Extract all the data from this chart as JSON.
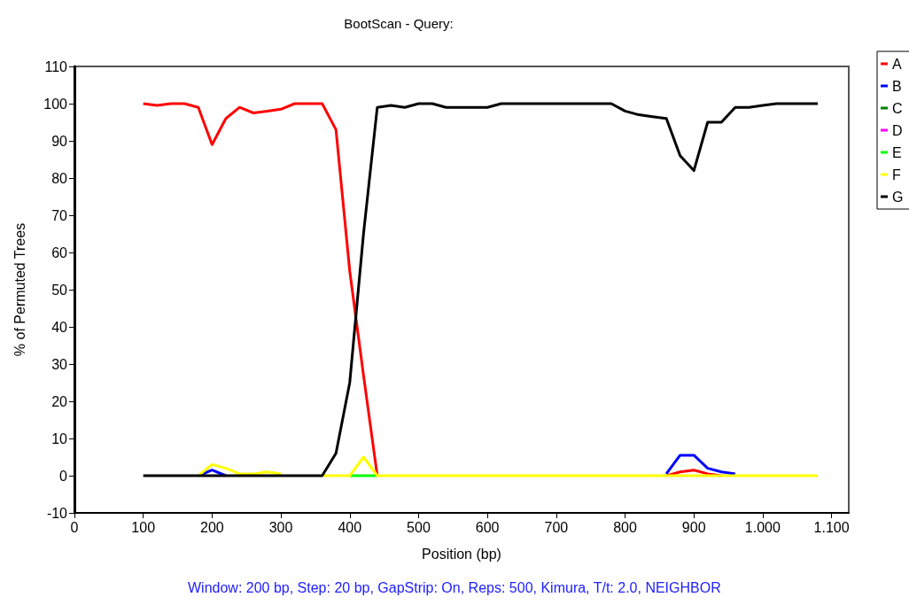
{
  "chart_data": {
    "type": "line",
    "title": "BootScan - Query:",
    "xlabel": "Position (bp)",
    "ylabel": "% of Permuted Trees",
    "annotations": [
      "Window: 200 bp, Step: 20 bp, GapStrip: On, Reps: 500, Kimura, T/t: 2.0, NEIGHBOR"
    ],
    "x": [
      100,
      120,
      140,
      160,
      180,
      200,
      220,
      240,
      260,
      280,
      300,
      320,
      340,
      360,
      380,
      400,
      420,
      440,
      460,
      480,
      500,
      520,
      540,
      560,
      580,
      600,
      620,
      640,
      660,
      680,
      700,
      720,
      740,
      760,
      780,
      800,
      820,
      840,
      860,
      880,
      900,
      920,
      940,
      960,
      980,
      1000,
      1020,
      1040,
      1060,
      1080
    ],
    "series": [
      {
        "name": "A",
        "color": "#ff0000",
        "values": [
          100,
          99.5,
          100,
          100,
          99,
          89,
          96,
          99,
          97.5,
          98,
          98.5,
          100,
          100,
          100,
          93,
          55,
          27,
          0,
          null,
          null,
          null,
          null,
          null,
          null,
          null,
          null,
          null,
          null,
          null,
          null,
          null,
          null,
          null,
          null,
          null,
          null,
          null,
          null,
          0,
          1,
          1.5,
          0.5,
          0,
          null,
          null,
          null,
          null,
          null,
          null,
          null
        ]
      },
      {
        "name": "B",
        "color": "#0000ff",
        "values": [
          null,
          null,
          null,
          null,
          0,
          1.5,
          0,
          null,
          null,
          null,
          null,
          null,
          null,
          null,
          null,
          null,
          null,
          null,
          null,
          null,
          null,
          null,
          null,
          null,
          null,
          null,
          null,
          null,
          null,
          null,
          null,
          null,
          null,
          null,
          null,
          null,
          null,
          null,
          0.5,
          5.5,
          5.5,
          2,
          1,
          0.5,
          null,
          null,
          null,
          null,
          null,
          null
        ]
      },
      {
        "name": "C",
        "color": "#008000",
        "values": [
          null,
          null,
          null,
          null,
          null,
          null,
          null,
          null,
          null,
          null,
          null,
          null,
          null,
          null,
          null,
          null,
          null,
          null,
          null,
          null,
          null,
          null,
          null,
          null,
          null,
          null,
          null,
          null,
          null,
          null,
          null,
          null,
          null,
          null,
          null,
          null,
          null,
          null,
          null,
          null,
          null,
          null,
          null,
          null,
          null,
          null,
          null,
          null,
          null,
          null
        ]
      },
      {
        "name": "D",
        "color": "#ff00ff",
        "values": [
          null,
          null,
          null,
          null,
          null,
          null,
          null,
          null,
          null,
          null,
          null,
          null,
          null,
          null,
          null,
          null,
          null,
          null,
          null,
          null,
          null,
          null,
          null,
          null,
          null,
          null,
          null,
          null,
          null,
          null,
          null,
          null,
          null,
          null,
          null,
          null,
          null,
          null,
          null,
          null,
          null,
          null,
          null,
          null,
          null,
          null,
          null,
          null,
          null,
          null
        ]
      },
      {
        "name": "E",
        "color": "#00ff00",
        "values": [
          null,
          null,
          null,
          null,
          null,
          null,
          null,
          null,
          null,
          null,
          null,
          null,
          null,
          null,
          null,
          0,
          0,
          0,
          null,
          null,
          null,
          null,
          null,
          null,
          null,
          null,
          null,
          null,
          null,
          null,
          null,
          null,
          null,
          null,
          null,
          null,
          null,
          null,
          null,
          null,
          null,
          null,
          null,
          null,
          null,
          null,
          null,
          null,
          null,
          null
        ]
      },
      {
        "name": "F",
        "color": "#ffff00",
        "values": [
          null,
          null,
          null,
          null,
          0,
          3,
          2,
          0.5,
          0.5,
          1,
          0.5,
          null,
          null,
          0,
          0,
          0,
          5,
          0,
          0,
          0,
          0,
          0,
          0,
          0,
          0,
          0,
          0,
          0,
          0,
          0,
          0,
          0,
          0,
          0,
          0,
          0,
          0,
          0,
          0,
          0,
          0,
          0,
          0,
          0,
          0,
          0,
          0,
          0,
          0,
          0
        ]
      },
      {
        "name": "G",
        "color": "#000000",
        "values": [
          0,
          0,
          0,
          0,
          0,
          0,
          0,
          0,
          0,
          0,
          0,
          0,
          0,
          0,
          6,
          25,
          65,
          99,
          99.5,
          99,
          100,
          100,
          99,
          99,
          99,
          99,
          100,
          100,
          100,
          100,
          100,
          100,
          100,
          100,
          100,
          98,
          97,
          96.5,
          96,
          86,
          82,
          95,
          95,
          99,
          99,
          99.5,
          100,
          100,
          100,
          100
        ]
      }
    ],
    "xlim": [
      0,
      1125
    ],
    "xticks": [
      0,
      100,
      200,
      300,
      400,
      500,
      600,
      700,
      800,
      900,
      {
        "value": 1000,
        "label": "1.000"
      },
      {
        "value": 1100,
        "label": "1.100"
      }
    ],
    "ylim": [
      -10,
      110
    ],
    "yticks": [
      -10,
      0,
      10,
      20,
      30,
      40,
      50,
      60,
      70,
      80,
      90,
      100,
      110
    ],
    "grid": false,
    "legend": "right",
    "marker": "none",
    "line_style": "solid"
  }
}
